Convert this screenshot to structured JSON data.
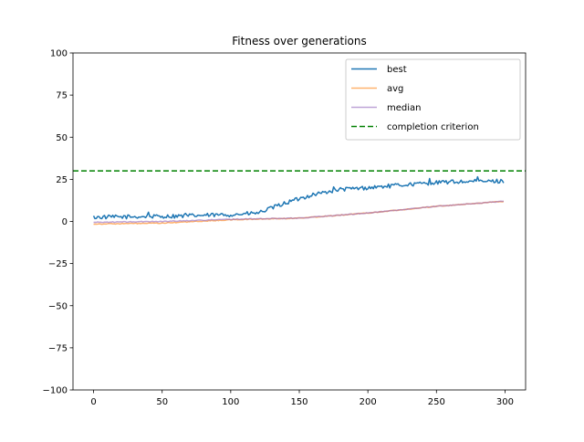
{
  "chart_data": {
    "type": "line",
    "title": "Fitness over generations",
    "xlabel": "",
    "ylabel": "",
    "xlim": [
      -15,
      315
    ],
    "ylim": [
      -100,
      100
    ],
    "xticks": [
      0,
      50,
      100,
      150,
      200,
      250,
      300
    ],
    "yticks": [
      -100,
      -75,
      -50,
      -25,
      0,
      25,
      50,
      75,
      100
    ],
    "grid": false,
    "legend_position": "top-right",
    "generations": 300,
    "series": [
      {
        "name": "best",
        "color": "#1f77b4",
        "style": "solid",
        "anchors": [
          [
            0,
            2.5
          ],
          [
            50,
            3
          ],
          [
            100,
            4
          ],
          [
            120,
            5
          ],
          [
            140,
            11
          ],
          [
            160,
            16
          ],
          [
            180,
            19
          ],
          [
            200,
            20
          ],
          [
            230,
            22
          ],
          [
            260,
            23.5
          ],
          [
            300,
            24
          ]
        ],
        "noise": 1.2,
        "spikes": [
          [
            40,
            5.5
          ],
          [
            67,
            4.8
          ],
          [
            175,
            20.5
          ],
          [
            245,
            25.5
          ],
          [
            280,
            26.5
          ]
        ]
      },
      {
        "name": "avg",
        "color": "#ff7f0e",
        "style": "solid",
        "opacity": 0.6,
        "anchors": [
          [
            0,
            -1.5
          ],
          [
            50,
            -1
          ],
          [
            100,
            1
          ],
          [
            150,
            2
          ],
          [
            200,
            5
          ],
          [
            250,
            9
          ],
          [
            300,
            12
          ]
        ],
        "noise": 0.25,
        "spikes": []
      },
      {
        "name": "median",
        "color": "#9467bd",
        "style": "solid",
        "opacity": 0.6,
        "anchors": [
          [
            0,
            -0.5
          ],
          [
            50,
            0
          ],
          [
            100,
            1.3
          ],
          [
            150,
            2
          ],
          [
            200,
            5
          ],
          [
            250,
            9
          ],
          [
            300,
            12
          ]
        ],
        "noise": 0.25,
        "spikes": []
      }
    ],
    "reference_line": {
      "name": "completion criterion",
      "y": 30,
      "color": "#008000",
      "style": "dashed"
    }
  }
}
